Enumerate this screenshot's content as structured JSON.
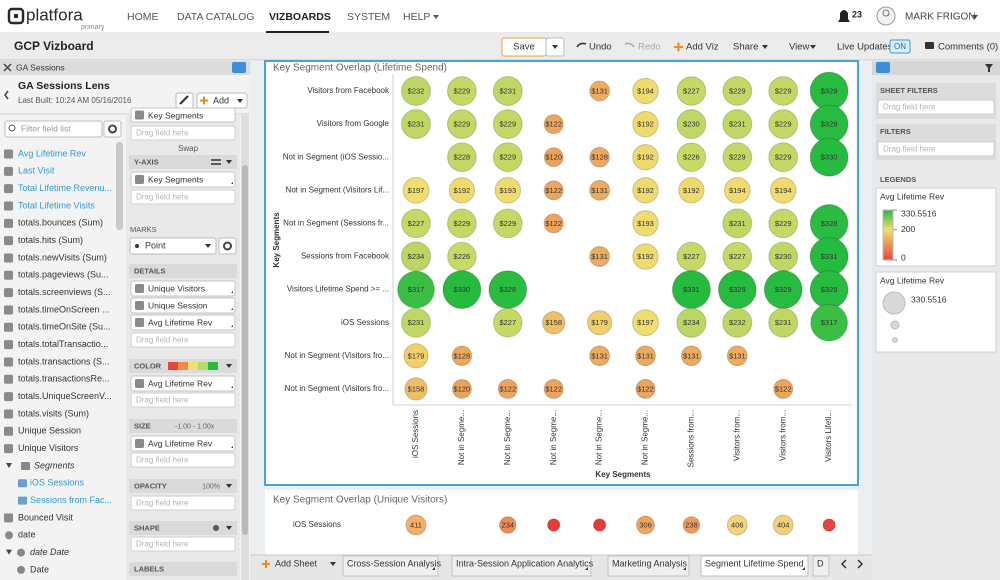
{
  "nav": {
    "logo": "platfora",
    "logo_sub": "primary",
    "items": [
      "HOME",
      "DATA CATALOG",
      "VIZBOARDS",
      "SYSTEM",
      "HELP"
    ],
    "notifications": "23",
    "user": "MARK FRIGON"
  },
  "toolbar": {
    "title": "GCP Vizboard",
    "save": "Save",
    "undo": "Undo",
    "redo": "Redo",
    "add_viz": "Add Viz",
    "share": "Share",
    "view": "View",
    "live_updates": "Live Updates",
    "live_state": "ON",
    "comments": "Comments (0)"
  },
  "data_panel": {
    "source": "GA Sessions",
    "lens": "GA Sessions Lens",
    "last_built": "Last Built: 10:24 AM 05/16/2016",
    "add": "Add",
    "filter_placeholder": "Filter field list",
    "fields": [
      "Avg Lifetime Rev",
      "Last Visit",
      "Total Lifetime Revenu...",
      "Total Lifetime Visits",
      "totals.bounces (Sum)",
      "totals.hits (Sum)",
      "totals.newVisits (Sum)",
      "totals.pageviews (Su...",
      "totals.screenviews (S...",
      "totals.timeOnScreen ...",
      "totals.timeOnSite (Su...",
      "totals.totalTransactio...",
      "totals.transactions (S...",
      "totals.transactionsRe...",
      "totals.UniqueScreenV...",
      "totals.visits (Sum)",
      "Unique Session",
      "Unique Visitors",
      "Segments",
      "iOS Sessions",
      "Sessions from Fac...",
      "Bounced Visit",
      "date",
      "date Date",
      "Date"
    ]
  },
  "config": {
    "rows_field": "Key Segments",
    "drop": "Drag field here",
    "swap": "Swap",
    "y_axis": "Y-AXIS",
    "y_field": "Key Segments",
    "marks": "MARKS",
    "mark_type": "Point",
    "details": "DETAILS",
    "detail_fields": [
      "Unique Visitors",
      "Unique Session",
      "Avg Lifetime Rev"
    ],
    "color": "COLOR",
    "color_field": "Avg Lifetime Rev",
    "size": "SIZE",
    "size_range": "-1.00 - 1.00x",
    "size_field": "Avg Lifetime Rev",
    "opacity": "OPACITY",
    "opacity_value": "100%",
    "shape": "SHAPE",
    "labels": "LABELS"
  },
  "chart_data": [
    {
      "type": "bubble-matrix",
      "title": "Key Segment Overlap (Lifetime Spend)",
      "x_label": "Key Segments",
      "y_label": "Key Segments",
      "categories": [
        "iOS Sessions",
        "Not in Segme...",
        "Not in Segme...",
        "Not in Segme...",
        "Not in Segme...",
        "Not in Segme...",
        "Sessions from...",
        "Visitors from...",
        "Visitors from...",
        "Visitors Lifeti..."
      ],
      "y_categories": [
        "Visitors from Facebook",
        "Visitors from Google",
        "Not in Segment (iOS Sessio...",
        "Not in Segment (Visitors Lif...",
        "Not in Segment (Sessions fr...",
        "Sessions from Facebook",
        "Visitors Lifetime Spend >= ...",
        "iOS Sessions",
        "Not in Segment (Visitors fro...",
        "Not in Segment (Visitors fro..."
      ],
      "values": [
        [
          232,
          229,
          231,
          null,
          131,
          194,
          227,
          229,
          229,
          329
        ],
        [
          231,
          229,
          229,
          122,
          null,
          192,
          230,
          231,
          229,
          329
        ],
        [
          null,
          228,
          229,
          120,
          128,
          192,
          226,
          229,
          229,
          330
        ],
        [
          197,
          192,
          193,
          122,
          131,
          192,
          192,
          194,
          194,
          null
        ],
        [
          227,
          229,
          229,
          122,
          null,
          193,
          null,
          231,
          229,
          328
        ],
        [
          234,
          226,
          null,
          null,
          131,
          192,
          227,
          227,
          230,
          331
        ],
        [
          317,
          330,
          328,
          null,
          null,
          null,
          331,
          329,
          329,
          329
        ],
        [
          231,
          null,
          227,
          158,
          179,
          197,
          234,
          232,
          231,
          317
        ],
        [
          179,
          128,
          null,
          null,
          131,
          131,
          131,
          131,
          null,
          null
        ],
        [
          158,
          120,
          122,
          122,
          null,
          122,
          null,
          null,
          122,
          null
        ]
      ],
      "value_labels": [
        [
          "$232",
          "$229",
          "$231",
          null,
          "$131",
          "$194",
          "$227",
          "$229",
          "$229",
          "$329"
        ],
        [
          "$231",
          "$229",
          "$229",
          "$122",
          null,
          "$192",
          "$230",
          "$231",
          "$229",
          "$329"
        ],
        [
          null,
          "$228",
          "$229",
          "$120",
          "$128",
          "$192",
          "$226",
          "$229",
          "$229",
          "$330"
        ],
        [
          "$197",
          "$192",
          "$193",
          "$122",
          "$131",
          "$192",
          "$192",
          "$194",
          "$194",
          null
        ],
        [
          "$227",
          "$229",
          "$229",
          "$122",
          null,
          "$193",
          null,
          "$231",
          "$229",
          "$328"
        ],
        [
          "$234",
          "$226",
          null,
          null,
          "$131",
          "$192",
          "$227",
          "$227",
          "$230",
          "$331"
        ],
        [
          "$317",
          "$330",
          "$328",
          null,
          null,
          null,
          "$331",
          "$329",
          "$329",
          "$329"
        ],
        [
          "$231",
          null,
          "$227",
          "$158",
          "$179",
          "$197",
          "$234",
          "$232",
          "$231",
          "$317"
        ],
        [
          "$179",
          "$128",
          null,
          null,
          "$131",
          "$131",
          "$131",
          "$131",
          null,
          null
        ],
        [
          "$158",
          "$120",
          "$122",
          "$122",
          null,
          "$122",
          null,
          null,
          "$122",
          null
        ]
      ],
      "color_scale": {
        "title": "Avg Lifetime Rev",
        "stops": [
          330.5516,
          200,
          0
        ],
        "colors": [
          "#25bb3f",
          "#f0e070",
          "#e8453c"
        ]
      },
      "size_scale": {
        "title": "Avg Lifetime Rev",
        "max": 330.5516
      }
    },
    {
      "type": "bubble-matrix",
      "title": "Key Segment Overlap (Unique Visitors)",
      "y_categories": [
        "iOS Sessions"
      ],
      "values": [
        [
          411,
          null,
          234,
          15,
          15,
          306,
          238,
          406,
          404,
          15
        ]
      ],
      "value_labels": [
        [
          "411",
          null,
          "234",
          null,
          null,
          "306",
          "238",
          "406",
          "404",
          null
        ]
      ],
      "colors": [
        [
          "#f3b066",
          null,
          "#ee8a55",
          "#e53b34",
          "#e53b34",
          "#f0a35e",
          "#ef9a5b",
          "#f2d57a",
          "#f2d07a",
          "#e5453a"
        ]
      ]
    }
  ],
  "right_panel": {
    "sheet_filters": "SHEET FILTERS",
    "filters": "FILTERS",
    "drop": "Drag field here",
    "legends": "LEGENDS"
  },
  "sheets": {
    "add": "Add Sheet",
    "tabs": [
      "Cross-Session Analysis",
      "Intra-Session Application Analytics",
      "Marketing Analysis",
      "Segment Lifetime Spend",
      "D"
    ]
  }
}
